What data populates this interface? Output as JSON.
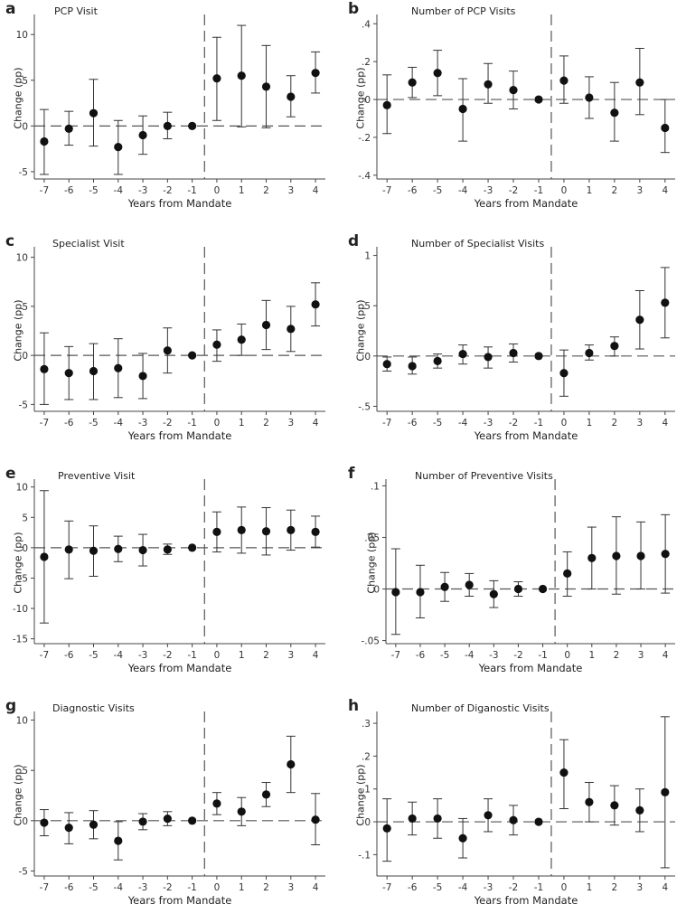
{
  "figure": {
    "x_axis_label": "Years from Mandate",
    "y_axis_label": "Change (pp)"
  },
  "colors": {
    "marker": "#111111",
    "axis": "#444444",
    "reference_line": "#555555"
  },
  "chart_data": [
    {
      "letter": "a",
      "title": "PCP Visit",
      "type": "scatter",
      "xlabel": "Years from Mandate",
      "ylabel": "Change (pp)",
      "x": [
        -7,
        -6,
        -5,
        -4,
        -3,
        -2,
        -1,
        0,
        1,
        2,
        3,
        4
      ],
      "y": [
        -1.7,
        -0.3,
        1.4,
        -2.3,
        -1.0,
        0.0,
        0.0,
        5.2,
        5.5,
        4.3,
        3.2,
        5.8
      ],
      "ci_low": [
        -5.3,
        -2.1,
        -2.2,
        -5.3,
        -3.1,
        -1.4,
        0.0,
        0.6,
        -0.1,
        -0.2,
        1.0,
        3.6
      ],
      "ci_high": [
        1.8,
        1.6,
        5.1,
        0.6,
        1.1,
        1.5,
        0.0,
        9.7,
        11.0,
        8.8,
        5.5,
        8.1
      ],
      "ylim": [
        -5.8,
        11.8
      ],
      "yticks": [
        -5,
        0,
        5,
        10
      ],
      "ytick_labels": [
        "-5",
        "0",
        "5",
        "10"
      ],
      "xticks": [
        -7,
        -6,
        -5,
        -4,
        -3,
        -2,
        -1,
        0,
        1,
        2,
        3,
        4
      ],
      "xtick_labels": [
        "-7",
        "-6",
        "-5",
        "-4",
        "-3",
        "-2",
        "-1",
        "0",
        "1",
        "2",
        "3",
        "4"
      ]
    },
    {
      "letter": "b",
      "title": "Number of PCP Visits",
      "type": "scatter",
      "xlabel": "Years from Mandate",
      "ylabel": "Change (pp)",
      "x": [
        -7,
        -6,
        -5,
        -4,
        -3,
        -2,
        -1,
        0,
        1,
        2,
        3,
        4
      ],
      "y": [
        -0.03,
        0.09,
        0.14,
        -0.05,
        0.08,
        0.05,
        0.0,
        0.1,
        0.01,
        -0.07,
        0.09,
        -0.15
      ],
      "ci_low": [
        -0.18,
        0.01,
        0.02,
        -0.22,
        -0.02,
        -0.05,
        0.0,
        -0.02,
        -0.1,
        -0.22,
        -0.08,
        -0.28
      ],
      "ci_high": [
        0.13,
        0.17,
        0.26,
        0.11,
        0.19,
        0.15,
        0.0,
        0.23,
        0.12,
        0.09,
        0.27,
        0.0
      ],
      "ylim": [
        -0.42,
        0.43
      ],
      "yticks": [
        -0.4,
        -0.2,
        0,
        0.2,
        0.4
      ],
      "ytick_labels": [
        "-.4",
        "-.2",
        "0",
        ".2",
        ".4"
      ],
      "xticks": [
        -7,
        -6,
        -5,
        -4,
        -3,
        -2,
        -1,
        0,
        1,
        2,
        3,
        4
      ],
      "xtick_labels": [
        "-7",
        "-6",
        "-5",
        "-4",
        "-3",
        "-2",
        "-1",
        "0",
        "1",
        "2",
        "3",
        "4"
      ]
    },
    {
      "letter": "c",
      "title": "Specialist Visit",
      "type": "scatter",
      "xlabel": "Years from Mandate",
      "ylabel": "Change (pp)",
      "x": [
        -7,
        -6,
        -5,
        -4,
        -3,
        -2,
        -1,
        0,
        1,
        2,
        3,
        4
      ],
      "y": [
        -1.4,
        -1.8,
        -1.6,
        -1.3,
        -2.1,
        0.5,
        0.0,
        1.1,
        1.6,
        3.1,
        2.7,
        5.2
      ],
      "ci_low": [
        -5.0,
        -4.5,
        -4.5,
        -4.3,
        -4.4,
        -1.8,
        0.0,
        -0.6,
        0.0,
        0.6,
        0.4,
        3.0
      ],
      "ci_high": [
        2.3,
        0.9,
        1.2,
        1.7,
        0.2,
        2.8,
        0.0,
        2.6,
        3.2,
        5.6,
        5.0,
        7.4
      ],
      "ylim": [
        -5.7,
        10.7
      ],
      "yticks": [
        -5,
        0,
        5,
        10
      ],
      "ytick_labels": [
        "-5",
        "0",
        "5",
        "10"
      ],
      "xticks": [
        -7,
        -6,
        -5,
        -4,
        -3,
        -2,
        -1,
        0,
        1,
        2,
        3,
        4
      ],
      "xtick_labels": [
        "-7",
        "-6",
        "-5",
        "-4",
        "-3",
        "-2",
        "-1",
        "0",
        "1",
        "2",
        "3",
        "4"
      ]
    },
    {
      "letter": "d",
      "title": "Number of Specialist Visits",
      "type": "scatter",
      "xlabel": "Years from Mandate",
      "ylabel": "Change (pp)",
      "x": [
        -7,
        -6,
        -5,
        -4,
        -3,
        -2,
        -1,
        0,
        1,
        2,
        3,
        4
      ],
      "y": [
        -0.08,
        -0.1,
        -0.05,
        0.02,
        -0.01,
        0.03,
        0.0,
        -0.17,
        0.03,
        0.1,
        0.36,
        0.53
      ],
      "ci_low": [
        -0.15,
        -0.18,
        -0.12,
        -0.08,
        -0.12,
        -0.06,
        0.0,
        -0.4,
        -0.04,
        0.0,
        0.07,
        0.18
      ],
      "ci_high": [
        -0.01,
        -0.01,
        0.02,
        0.11,
        0.09,
        0.12,
        0.0,
        0.06,
        0.11,
        0.19,
        0.65,
        0.88
      ],
      "ylim": [
        -0.55,
        1.05
      ],
      "yticks": [
        -0.5,
        0,
        0.5,
        1
      ],
      "ytick_labels": [
        "-.5",
        "0",
        ".5",
        "1"
      ],
      "xticks": [
        -7,
        -6,
        -5,
        -4,
        -3,
        -2,
        -1,
        0,
        1,
        2,
        3,
        4
      ],
      "xtick_labels": [
        "-7",
        "-6",
        "-5",
        "-4",
        "-3",
        "-2",
        "-1",
        "0",
        "1",
        "2",
        "3",
        "4"
      ]
    },
    {
      "letter": "e",
      "title": "Preventive Visit",
      "type": "scatter",
      "xlabel": "Years from Mandate",
      "ylabel": "Change (pp)",
      "x": [
        -7,
        -6,
        -5,
        -4,
        -3,
        -2,
        -1,
        0,
        1,
        2,
        3,
        4
      ],
      "y": [
        -1.5,
        -0.3,
        -0.5,
        -0.2,
        -0.4,
        -0.3,
        0.0,
        2.6,
        2.9,
        2.7,
        2.9,
        2.6
      ],
      "ci_low": [
        -12.4,
        -5.1,
        -4.7,
        -2.3,
        -3.0,
        -1.1,
        0.0,
        -0.7,
        -0.9,
        -1.2,
        -0.4,
        0.1
      ],
      "ci_high": [
        9.4,
        4.4,
        3.6,
        1.9,
        2.2,
        0.6,
        0.0,
        5.9,
        6.7,
        6.6,
        6.2,
        5.2
      ],
      "ylim": [
        -15.8,
        10.7
      ],
      "yticks": [
        -15,
        -10,
        -5,
        0,
        5,
        10
      ],
      "ytick_labels": [
        "-15",
        "-10",
        "-5",
        "0",
        "5",
        "10"
      ],
      "xticks": [
        -7,
        -6,
        -5,
        -4,
        -3,
        -2,
        -1,
        0,
        1,
        2,
        3,
        4
      ],
      "xtick_labels": [
        "-7",
        "-6",
        "-5",
        "-4",
        "-3",
        "-2",
        "-1",
        "0",
        "1",
        "2",
        "3",
        "4"
      ]
    },
    {
      "letter": "f",
      "title": "Number of Preventive Visits",
      "type": "scatter",
      "xlabel": "Years from Mandate",
      "ylabel": "Change (pp)",
      "x": [
        -7,
        -6,
        -5,
        -4,
        -3,
        -2,
        -1,
        0,
        1,
        2,
        3,
        4
      ],
      "y": [
        -0.003,
        -0.003,
        0.002,
        0.004,
        -0.005,
        0.0,
        0.0,
        0.015,
        0.03,
        0.032,
        0.032,
        0.034
      ],
      "ci_low": [
        -0.044,
        -0.028,
        -0.012,
        -0.007,
        -0.018,
        -0.007,
        0.0,
        -0.007,
        0.0,
        -0.005,
        0.0,
        -0.004
      ],
      "ci_high": [
        0.039,
        0.023,
        0.016,
        0.015,
        0.008,
        0.007,
        0.0,
        0.036,
        0.06,
        0.07,
        0.065,
        0.072
      ],
      "ylim": [
        -0.053,
        0.103
      ],
      "yticks": [
        -0.05,
        0,
        0.05,
        0.1
      ],
      "ytick_labels": [
        "-.05",
        "0",
        ".05",
        ".1"
      ],
      "xticks": [
        -7,
        -6,
        -5,
        -4,
        -3,
        -2,
        -1,
        0,
        1,
        2,
        3,
        4
      ],
      "xtick_labels": [
        "-7",
        "-6",
        "-5",
        "-4",
        "-3",
        "-2",
        "-1",
        "0",
        "1",
        "2",
        "3",
        "4"
      ]
    },
    {
      "letter": "g",
      "title": "Diagnostic Visits",
      "type": "scatter",
      "xlabel": "Years from Mandate",
      "ylabel": "Change (pp)",
      "x": [
        -7,
        -6,
        -5,
        -4,
        -3,
        -2,
        -1,
        0,
        1,
        2,
        3,
        4
      ],
      "y": [
        -0.2,
        -0.7,
        -0.4,
        -2.0,
        -0.1,
        0.2,
        0.0,
        1.7,
        0.9,
        2.6,
        5.6,
        0.1
      ],
      "ci_low": [
        -1.5,
        -2.3,
        -1.8,
        -3.9,
        -0.9,
        -0.5,
        0.0,
        0.6,
        -0.5,
        1.4,
        2.8,
        -2.4
      ],
      "ci_high": [
        1.1,
        0.8,
        1.0,
        -0.1,
        0.7,
        0.9,
        0.0,
        2.8,
        2.3,
        3.8,
        8.4,
        2.7
      ],
      "ylim": [
        -5.5,
        10.5
      ],
      "yticks": [
        -5,
        0,
        5,
        10
      ],
      "ytick_labels": [
        "-5",
        "0",
        "5",
        "10"
      ],
      "xticks": [
        -7,
        -6,
        -5,
        -4,
        -3,
        -2,
        -1,
        0,
        1,
        2,
        3,
        4
      ],
      "xtick_labels": [
        "-7",
        "-6",
        "-5",
        "-4",
        "-3",
        "-2",
        "-1",
        "0",
        "1",
        "2",
        "3",
        "4"
      ]
    },
    {
      "letter": "h",
      "title": "Number of Diganostic Visits",
      "type": "scatter",
      "xlabel": "Years from Mandate",
      "ylabel": "Change (pp)",
      "x": [
        -7,
        -6,
        -5,
        -4,
        -3,
        -2,
        -1,
        0,
        1,
        2,
        3,
        4
      ],
      "y": [
        -0.02,
        0.01,
        0.01,
        -0.05,
        0.02,
        0.005,
        0.0,
        0.15,
        0.06,
        0.05,
        0.035,
        0.09
      ],
      "ci_low": [
        -0.12,
        -0.04,
        -0.05,
        -0.11,
        -0.03,
        -0.04,
        0.0,
        0.04,
        0.0,
        -0.01,
        -0.03,
        -0.14
      ],
      "ci_high": [
        0.07,
        0.06,
        0.07,
        0.01,
        0.07,
        0.05,
        0.0,
        0.25,
        0.12,
        0.11,
        0.1,
        0.32
      ],
      "ylim": [
        -0.165,
        0.325
      ],
      "yticks": [
        -0.1,
        0,
        0.1,
        0.2,
        0.3
      ],
      "ytick_labels": [
        "-.1",
        "0",
        ".1",
        ".2",
        ".3"
      ],
      "xticks": [
        -7,
        -6,
        -5,
        -4,
        -3,
        -2,
        -1,
        0,
        1,
        2,
        3,
        4
      ],
      "xtick_labels": [
        "-7",
        "-6",
        "-5",
        "-4",
        "-3",
        "-2",
        "-1",
        "0",
        "1",
        "2",
        "3",
        "4"
      ]
    }
  ]
}
